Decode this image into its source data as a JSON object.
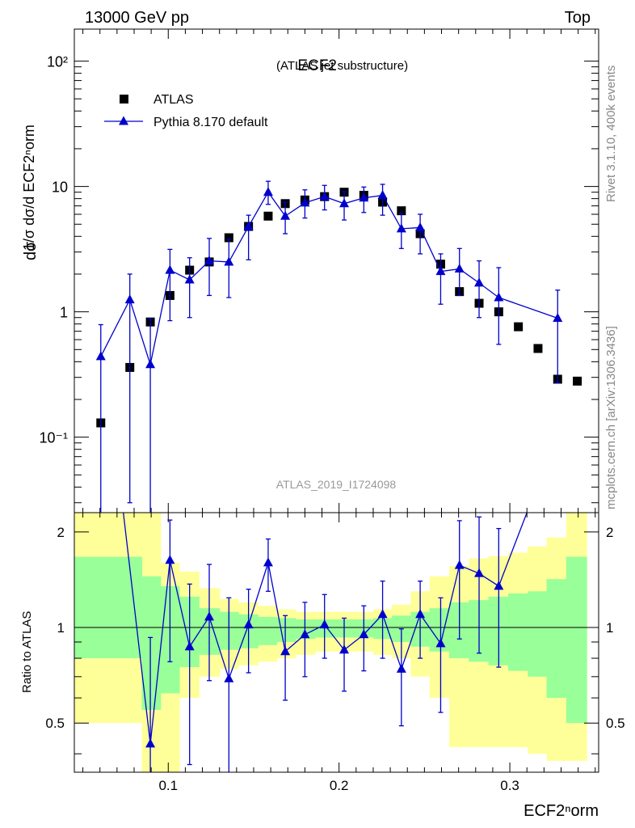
{
  "header": {
    "left": "13000 GeV pp",
    "right": "Top"
  },
  "side_labels": {
    "rivet": "Rivet 3.1.10,  400k events",
    "mcplots": "mcplots.cern.ch [arXiv:1306.3436]"
  },
  "colors": {
    "data": "#000000",
    "mc": "#0000cc",
    "band_inner": "#99ff99",
    "band_outer": "#ffff99"
  },
  "chart_data": {
    "type": "scatter",
    "title": "ECF2",
    "subtitle": "(ATLAS jet substructure)",
    "analysis_id": "ATLAS_2019_I1724098",
    "xlabel": "ECF2ⁿorm",
    "ylabel": "1/σ dσ/d ECF2ⁿorm",
    "ratio_ylabel": "Ratio to ATLAS",
    "xlim": [
      0.045,
      0.352
    ],
    "ylim": [
      0.025,
      180
    ],
    "yscale": "log",
    "ratio_ylim": [
      0.35,
      2.3
    ],
    "legend_position": "top-left",
    "x_ticks": [
      "0.1",
      "0.2",
      "0.3"
    ],
    "y_ticks": [
      "10⁻¹",
      "1",
      "10",
      "10²"
    ],
    "ratio_ticks": [
      "0.5",
      "1",
      "2"
    ],
    "series": [
      {
        "name": "ATLAS",
        "x": [
          0.0605,
          0.0775,
          0.0895,
          0.101,
          0.1125,
          0.124,
          0.1355,
          0.147,
          0.1585,
          0.1685,
          0.18,
          0.1915,
          0.203,
          0.2145,
          0.2255,
          0.2365,
          0.2475,
          0.2595,
          0.2705,
          0.282,
          0.2935,
          0.305,
          0.3165,
          0.328,
          0.3395
        ],
        "y": [
          0.13,
          0.36,
          0.83,
          1.35,
          2.15,
          2.5,
          3.9,
          4.8,
          5.8,
          7.3,
          7.8,
          8.3,
          9.0,
          8.5,
          7.5,
          6.4,
          4.2,
          2.4,
          1.45,
          1.17,
          1.0,
          0.76,
          0.51,
          0.29,
          0.28
        ]
      },
      {
        "name": "Pythia 8.170 default",
        "x": [
          0.0605,
          0.0775,
          0.0895,
          0.101,
          0.1125,
          0.124,
          0.1355,
          0.147,
          0.1585,
          0.1685,
          0.18,
          0.1915,
          0.203,
          0.2145,
          0.2255,
          0.2365,
          0.2475,
          0.2595,
          0.2705,
          0.282,
          0.2935,
          0.328
        ],
        "y": [
          0.44,
          1.25,
          0.38,
          2.15,
          1.8,
          2.55,
          2.5,
          4.8,
          9.0,
          5.8,
          7.4,
          8.3,
          7.3,
          8.1,
          8.5,
          4.6,
          4.7,
          2.1,
          2.2,
          1.7,
          1.3,
          0.89
        ],
        "err_lo": [
          0.42,
          1.22,
          0.36,
          1.3,
          0.9,
          1.2,
          1.2,
          2.2,
          1.8,
          1.6,
          1.8,
          1.8,
          1.9,
          1.9,
          2.6,
          1.4,
          1.8,
          0.95,
          0.85,
          0.8,
          0.75,
          0.62
        ],
        "err_hi": [
          0.35,
          0.75,
          0.5,
          1.0,
          0.9,
          1.3,
          1.3,
          1.1,
          2.0,
          1.7,
          2.0,
          1.9,
          1.8,
          1.8,
          1.9,
          1.5,
          1.3,
          0.8,
          1.0,
          0.85,
          0.95,
          0.6
        ]
      }
    ],
    "ratio": {
      "name": "Pythia 8.170 default / ATLAS",
      "x": [
        0.0895,
        0.101,
        0.1125,
        0.124,
        0.1355,
        0.147,
        0.1585,
        0.1685,
        0.18,
        0.1915,
        0.203,
        0.2145,
        0.2255,
        0.2365,
        0.2475,
        0.2595,
        0.2705,
        0.282,
        0.2935
      ],
      "y": [
        0.43,
        1.63,
        0.87,
        1.08,
        0.69,
        1.02,
        1.6,
        0.84,
        0.95,
        1.02,
        0.85,
        0.95,
        1.1,
        0.74,
        1.1,
        0.89,
        1.57,
        1.48,
        1.35
      ],
      "err_lo": [
        0.43,
        0.85,
        0.5,
        0.4,
        0.35,
        0.3,
        0.3,
        0.25,
        0.25,
        0.22,
        0.22,
        0.22,
        0.3,
        0.25,
        0.3,
        0.35,
        0.65,
        0.65,
        0.6
      ],
      "err_hi": [
        0.5,
        0.55,
        0.5,
        0.5,
        0.55,
        0.3,
        0.3,
        0.25,
        0.25,
        0.25,
        0.22,
        0.22,
        0.3,
        0.25,
        0.3,
        0.35,
        0.6,
        0.75,
        0.7
      ],
      "line_start": [
        0.0737,
        2.3
      ],
      "line_end": [
        0.31,
        2.3
      ]
    },
    "bands": {
      "edges": [
        0.045,
        0.07,
        0.0845,
        0.0955,
        0.1065,
        0.118,
        0.13,
        0.141,
        0.1525,
        0.1635,
        0.1745,
        0.186,
        0.1975,
        0.209,
        0.22,
        0.231,
        0.242,
        0.253,
        0.2645,
        0.276,
        0.2875,
        0.299,
        0.3105,
        0.3215,
        0.333,
        0.345
      ],
      "inner_lo": [
        0.8,
        0.8,
        0.55,
        0.62,
        0.75,
        0.82,
        0.85,
        0.86,
        0.88,
        0.9,
        0.92,
        0.93,
        0.93,
        0.93,
        0.92,
        0.9,
        0.87,
        0.84,
        0.8,
        0.78,
        0.76,
        0.73,
        0.7,
        0.6,
        0.5,
        0.5
      ],
      "inner_hi": [
        1.67,
        1.67,
        1.45,
        1.35,
        1.25,
        1.15,
        1.12,
        1.1,
        1.08,
        1.07,
        1.06,
        1.06,
        1.06,
        1.06,
        1.07,
        1.09,
        1.12,
        1.15,
        1.2,
        1.22,
        1.25,
        1.28,
        1.3,
        1.42,
        1.67,
        1.67
      ],
      "outer_lo": [
        0.5,
        0.5,
        0.32,
        0.32,
        0.6,
        0.7,
        0.74,
        0.76,
        0.78,
        0.8,
        0.82,
        0.84,
        0.84,
        0.84,
        0.82,
        0.8,
        0.7,
        0.6,
        0.42,
        0.42,
        0.42,
        0.42,
        0.4,
        0.38,
        0.38,
        0.38
      ],
      "outer_hi": [
        2.3,
        2.3,
        2.3,
        1.6,
        1.5,
        1.33,
        1.23,
        1.2,
        1.17,
        1.14,
        1.12,
        1.12,
        1.12,
        1.12,
        1.14,
        1.18,
        1.3,
        1.45,
        1.56,
        1.65,
        1.68,
        1.72,
        1.8,
        1.92,
        2.3,
        2.3
      ]
    }
  }
}
